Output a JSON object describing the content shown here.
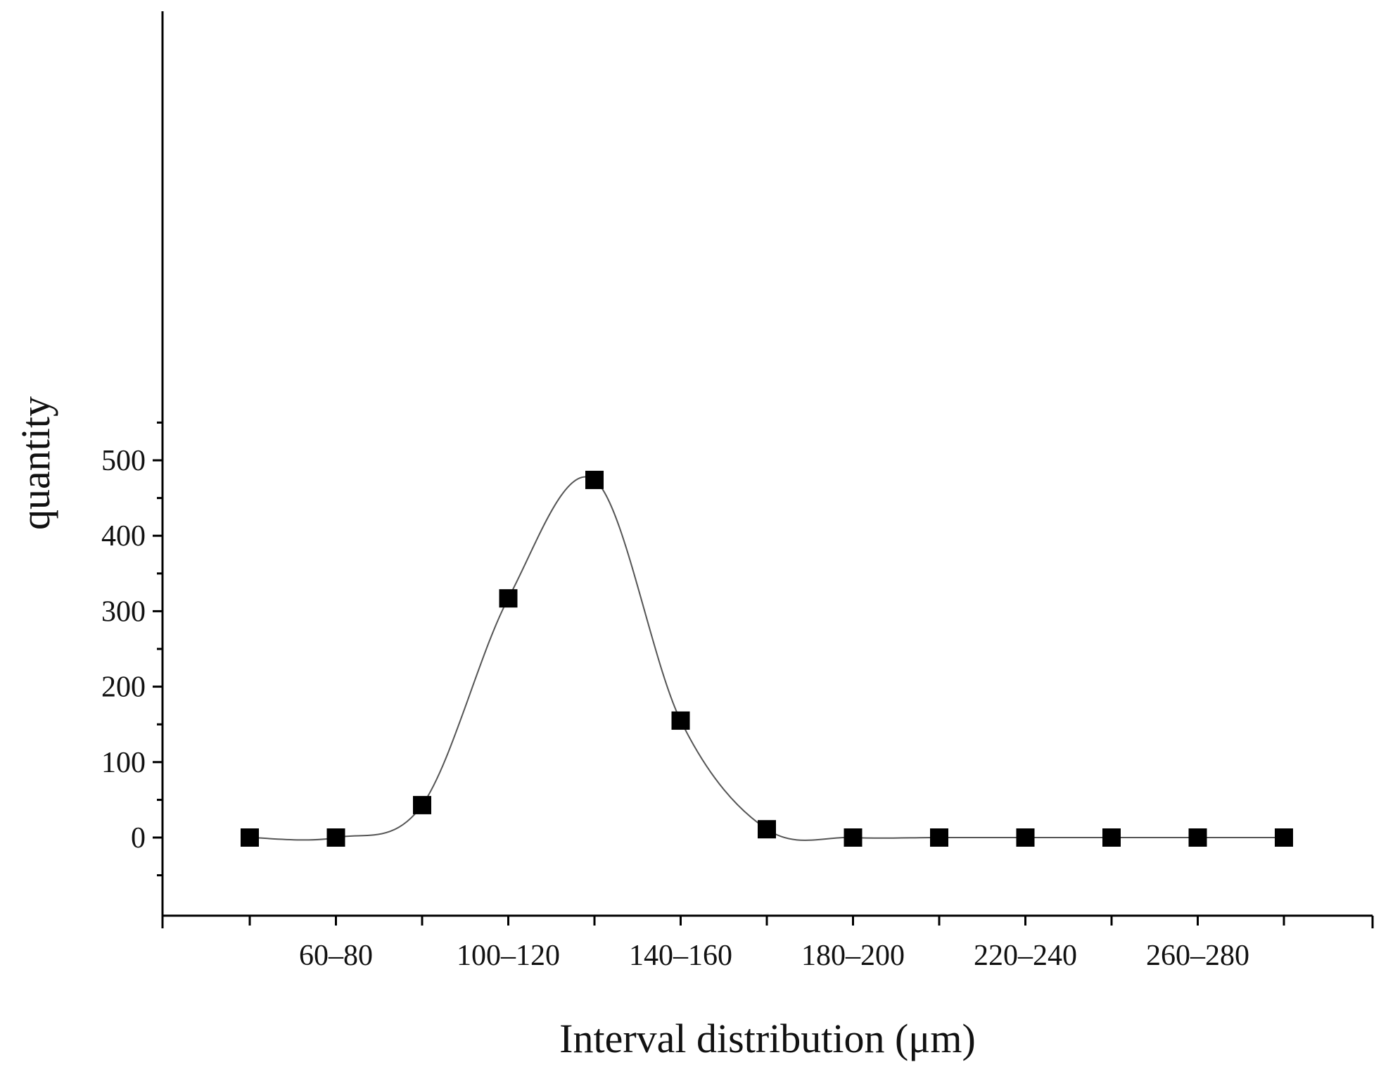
{
  "chart_data": {
    "type": "scatter",
    "title": "",
    "xlabel": "Interval distribution (μm)",
    "ylabel": "quantity",
    "categories": [
      "",
      "60–80",
      "",
      "100–120",
      "",
      "140–160",
      "",
      "180–200",
      "",
      "220–240",
      "",
      "260–280",
      ""
    ],
    "series": [
      {
        "marker": "square",
        "line": "smooth",
        "values": [
          0,
          0,
          43,
          317,
          474,
          155,
          11,
          0,
          0,
          0,
          0,
          0,
          0
        ]
      }
    ],
    "ylim": [
      -50,
      550
    ],
    "yticks": [
      0,
      100,
      200,
      300,
      400,
      500
    ],
    "grid": false,
    "legend": "none",
    "colors": {
      "marker": "#000000",
      "curve": "#555555",
      "axis": "#000000"
    }
  }
}
